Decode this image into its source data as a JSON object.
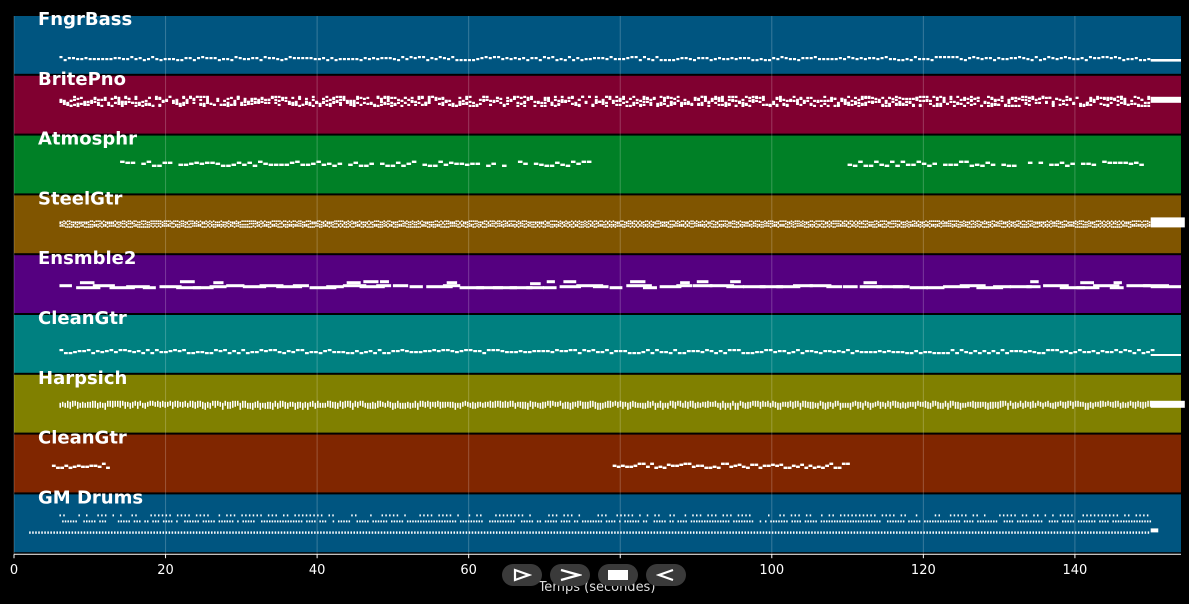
{
  "window": {
    "title": ""
  },
  "axis": {
    "xlabel": "Temps (secondes)",
    "xlim": [
      0,
      154
    ],
    "ticks": [
      0,
      20,
      40,
      60,
      80,
      100,
      120,
      140
    ]
  },
  "tracks": [
    {
      "name": "FngrBass",
      "color": "#005580",
      "notes": "pattern-dense-low"
    },
    {
      "name": "BritePno",
      "color": "#800030",
      "notes": "chords-dense"
    },
    {
      "name": "Atmosphr",
      "color": "#008026",
      "notes": "two-sections"
    },
    {
      "name": "SteelGtr",
      "color": "#805500",
      "notes": "strum-dense"
    },
    {
      "name": "Ensmble2",
      "color": "#550080",
      "notes": "long-notes"
    },
    {
      "name": "CleanGtr",
      "color": "#008080",
      "notes": "line-mid"
    },
    {
      "name": "Harpsich",
      "color": "#808000",
      "notes": "arpeggio-dense"
    },
    {
      "name": "CleanGtr",
      "color": "#802600",
      "notes": "sparse"
    },
    {
      "name": "GM Drums",
      "color": "#005580",
      "notes": "drums"
    }
  ],
  "track_sections": {
    "Atmosphr": [
      [
        14,
        76
      ],
      [
        110,
        149
      ]
    ],
    "CleanGtr_2": [
      [
        5,
        12.5
      ],
      [
        79,
        110
      ]
    ]
  },
  "controls": [
    {
      "name": "play-button",
      "icon": "play-outline-icon"
    },
    {
      "name": "forward-button",
      "icon": "chevron-right-icon"
    },
    {
      "name": "stop-button",
      "icon": "stop-icon"
    },
    {
      "name": "rewind-button",
      "icon": "triangle-left-icon"
    }
  ]
}
